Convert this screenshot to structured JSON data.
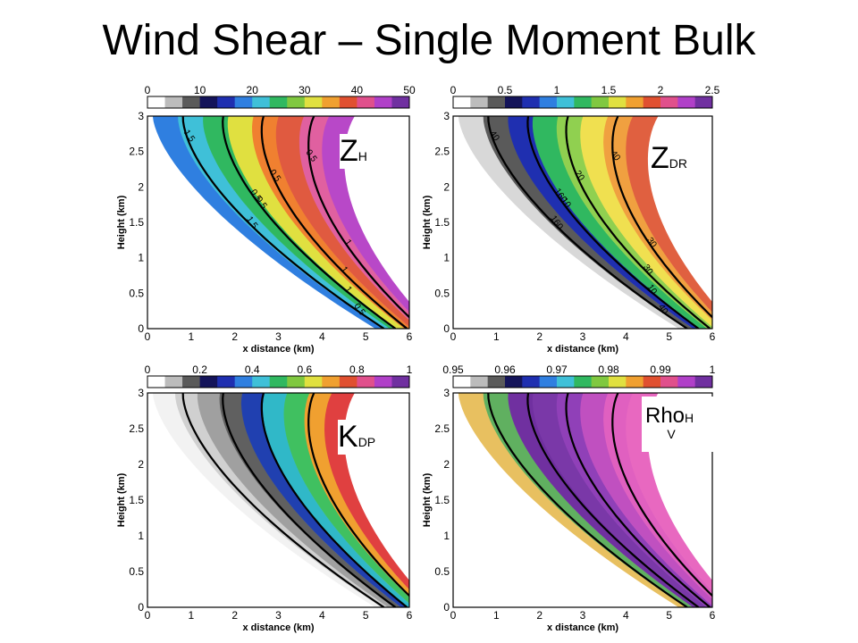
{
  "title": "Wind Shear – Single Moment Bulk",
  "chart_data": [
    {
      "type": "heatmap",
      "variable": "Z",
      "variable_sub": "H",
      "colorbar_ticks": [
        "0",
        "10",
        "20",
        "30",
        "40",
        "50"
      ],
      "colorbar_range": [
        0,
        50
      ],
      "contour_labels": [
        "1.5",
        "0.5",
        "1",
        "0.5",
        "1.5",
        "1",
        "0.5",
        "1",
        "0.5",
        "0.5"
      ],
      "xlabel": "x distance (km)",
      "ylabel": "Height (km)",
      "xlim": [
        0,
        6
      ],
      "ylim": [
        0,
        3
      ],
      "xticks": [
        "0",
        "1",
        "2",
        "3",
        "4",
        "5",
        "6"
      ],
      "yticks": [
        "0",
        "0.5",
        "1",
        "1.5",
        "2",
        "2.5",
        "3"
      ]
    },
    {
      "type": "heatmap",
      "variable": "Z",
      "variable_sub": "DR",
      "colorbar_ticks": [
        "0",
        "0.5",
        "1",
        "1.5",
        "2",
        "2.5"
      ],
      "colorbar_range": [
        0,
        2.5
      ],
      "contour_labels": [
        "40",
        "10",
        "30",
        "40",
        "160",
        "10",
        "20",
        "30",
        "40",
        "160"
      ],
      "xlabel": "x distance (km)",
      "ylabel": "Height (km)",
      "xlim": [
        0,
        6
      ],
      "ylim": [
        0,
        3
      ],
      "xticks": [
        "0",
        "1",
        "2",
        "3",
        "4",
        "5",
        "6"
      ],
      "yticks": [
        "0",
        "0.5",
        "1",
        "1.5",
        "2",
        "2.5",
        "3"
      ]
    },
    {
      "type": "heatmap",
      "variable": "K",
      "variable_sub": "DP",
      "colorbar_ticks": [
        "0",
        "0.2",
        "0.4",
        "0.6",
        "0.8",
        "1"
      ],
      "colorbar_range": [
        0,
        1
      ],
      "contour_labels": [],
      "xlabel": "x distance (km)",
      "ylabel": "Height (km)",
      "xlim": [
        0,
        6
      ],
      "ylim": [
        0,
        3
      ],
      "xticks": [
        "0",
        "1",
        "2",
        "3",
        "4",
        "5",
        "6"
      ],
      "yticks": [
        "0",
        "0.5",
        "1",
        "1.5",
        "2",
        "2.5",
        "3"
      ]
    },
    {
      "type": "heatmap",
      "variable": "Rho",
      "variable_sub": "H",
      "variable_sub2": "V",
      "colorbar_ticks": [
        "0.95",
        "0.96",
        "0.97",
        "0.98",
        "0.99",
        "1"
      ],
      "colorbar_range": [
        0.95,
        1
      ],
      "contour_labels": [],
      "xlabel": "x distance (km)",
      "ylabel": "Height (km)",
      "xlim": [
        0,
        6
      ],
      "ylim": [
        0,
        3
      ],
      "xticks": [
        "0",
        "1",
        "2",
        "3",
        "4",
        "5",
        "6"
      ],
      "yticks": [
        "0",
        "0.5",
        "1",
        "1.5",
        "2",
        "2.5",
        "3"
      ]
    }
  ]
}
